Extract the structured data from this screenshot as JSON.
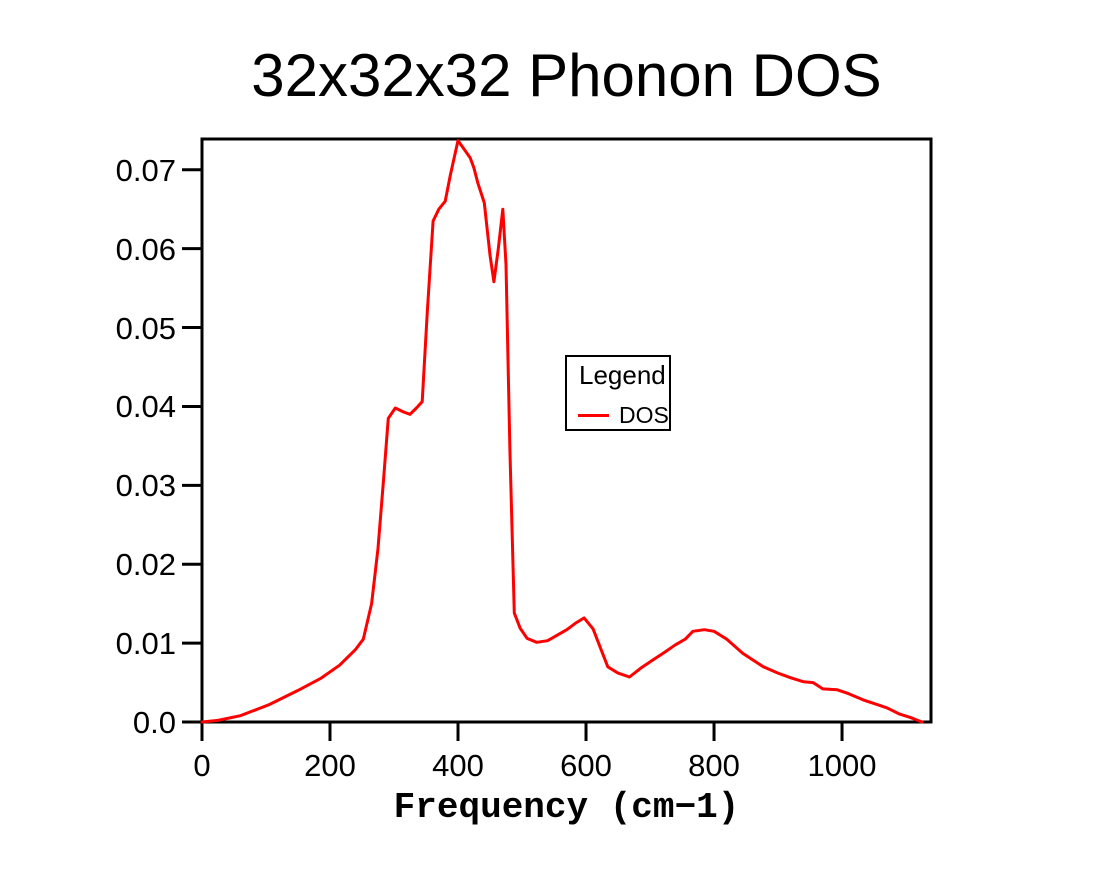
{
  "chart": {
    "title": "32x32x32 Phonon DOS",
    "xlabel": "Frequency (cm−1)"
  },
  "legend": {
    "title": "Legend",
    "entries": [
      {
        "label": "DOS",
        "color": "#ff0000"
      }
    ]
  },
  "colors": {
    "line": "#ff0000",
    "axis": "#000000",
    "background": "#ffffff"
  },
  "chart_data": {
    "type": "line",
    "title": "32x32x32 Phonon DOS",
    "xlabel": "Frequency (cm−1)",
    "ylabel": "",
    "xlim": [
      0,
      1139
    ],
    "ylim": [
      0,
      0.0739
    ],
    "grid": false,
    "legend_position": "inside center-right, boxed",
    "x_tick_values": [
      0,
      200,
      400,
      600,
      800,
      1000
    ],
    "x_tick_labels": [
      "0",
      "200",
      "400",
      "600",
      "800",
      "1000"
    ],
    "y_tick_values": [
      0,
      0.01,
      0.02,
      0.03,
      0.04,
      0.05,
      0.06,
      0.07
    ],
    "y_tick_labels": [
      "0.0",
      "0.01",
      "0.02",
      "0.03",
      "0.04",
      "0.05",
      "0.06",
      "0.07"
    ],
    "series": [
      {
        "name": "DOS",
        "color": "#ff0000",
        "x": [
          0,
          25,
          60,
          105,
          150,
          185,
          215,
          240,
          252,
          265,
          275,
          283,
          291,
          302,
          315,
          325,
          335,
          344,
          352,
          361,
          370,
          380,
          388,
          400,
          408,
          419,
          425,
          431,
          441,
          450,
          456,
          463,
          470,
          475,
          481,
          488,
          497,
          508,
          523,
          540,
          555,
          570,
          585,
          597,
          611,
          622,
          634,
          650,
          668,
          685,
          705,
          722,
          740,
          755,
          767,
          785,
          800,
          820,
          845,
          862,
          877,
          900,
          920,
          940,
          955,
          970,
          992,
          1010,
          1033,
          1052,
          1070,
          1090,
          1106,
          1125
        ],
        "y": [
          0.0,
          0.0002,
          0.0008,
          0.0022,
          0.004,
          0.0055,
          0.0072,
          0.0092,
          0.0105,
          0.015,
          0.022,
          0.03,
          0.0385,
          0.0398,
          0.0393,
          0.039,
          0.0398,
          0.0406,
          0.052,
          0.0635,
          0.065,
          0.066,
          0.0693,
          0.0737,
          0.0728,
          0.0715,
          0.0702,
          0.0683,
          0.0658,
          0.0592,
          0.0558,
          0.06,
          0.065,
          0.058,
          0.0345,
          0.0138,
          0.0119,
          0.0106,
          0.0101,
          0.0103,
          0.011,
          0.0117,
          0.0126,
          0.0132,
          0.0118,
          0.0095,
          0.007,
          0.0062,
          0.0057,
          0.0068,
          0.0079,
          0.0088,
          0.0098,
          0.0105,
          0.0115,
          0.0117,
          0.0115,
          0.0105,
          0.0087,
          0.0078,
          0.007,
          0.0062,
          0.0056,
          0.0051,
          0.005,
          0.0042,
          0.0041,
          0.0036,
          0.0028,
          0.0023,
          0.0018,
          0.001,
          0.0006,
          0.0
        ]
      }
    ]
  }
}
